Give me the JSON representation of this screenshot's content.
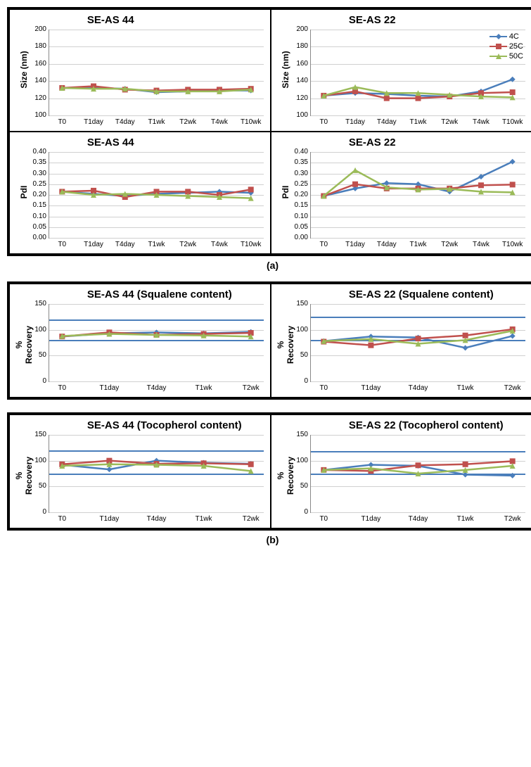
{
  "captions": {
    "a": "(a)",
    "b": "(b)"
  },
  "colors": {
    "s4": "#4a7ebb",
    "s25": "#c0504d",
    "s50": "#9bbb59",
    "grid": "#d0d0d0",
    "axis": "#888888",
    "refline": "#4a7ebb"
  },
  "markers": {
    "s4": "diamond",
    "s25": "square",
    "s50": "triangle"
  },
  "legend": {
    "items": [
      {
        "label": "4C",
        "key": "s4"
      },
      {
        "label": "25C",
        "key": "s25"
      },
      {
        "label": "50C",
        "key": "s50"
      }
    ]
  },
  "line_width": 2.5,
  "marker_size": 8,
  "title_fontsize": 15,
  "label_fontsize": 12,
  "tick_fontsize": 10,
  "groupA": {
    "xlabels": [
      "T0",
      "T1day",
      "T4day",
      "T1wk",
      "T2wk",
      "T4wk",
      "T10wk"
    ],
    "charts": [
      {
        "title": "SE-AS 44",
        "ylabel": "Size (nm)",
        "ylim": [
          100,
          200
        ],
        "ystep": 20,
        "series": {
          "s4": [
            132,
            132,
            131,
            127,
            128,
            129,
            129
          ],
          "s25": [
            132,
            134,
            130,
            129,
            130,
            130,
            131
          ],
          "s50": [
            132,
            131,
            131,
            128,
            128,
            128,
            130
          ]
        }
      },
      {
        "title": "SE-AS 22",
        "ylabel": "Size (nm)",
        "ylim": [
          100,
          200
        ],
        "ystep": 20,
        "show_legend": true,
        "series": {
          "s4": [
            123,
            126,
            125,
            123,
            122,
            128,
            142
          ],
          "s25": [
            123,
            128,
            120,
            120,
            122,
            126,
            127
          ],
          "s50": [
            123,
            133,
            126,
            126,
            124,
            122,
            121
          ]
        }
      },
      {
        "title": "SE-AS 44",
        "ylabel": "PdI",
        "ylim": [
          0.0,
          0.4
        ],
        "ystep": 0.05,
        "decimals": 2,
        "series": {
          "s4": [
            0.215,
            0.205,
            0.195,
            0.205,
            0.21,
            0.215,
            0.21
          ],
          "s25": [
            0.215,
            0.22,
            0.19,
            0.215,
            0.215,
            0.2,
            0.225
          ],
          "s50": [
            0.215,
            0.2,
            0.205,
            0.2,
            0.195,
            0.19,
            0.185
          ]
        }
      },
      {
        "title": "SE-AS 22",
        "ylabel": "PdI",
        "ylim": [
          0.0,
          0.4
        ],
        "ystep": 0.05,
        "decimals": 2,
        "series": {
          "s4": [
            0.195,
            0.23,
            0.255,
            0.25,
            0.215,
            0.285,
            0.355
          ],
          "s25": [
            0.195,
            0.25,
            0.23,
            0.23,
            0.23,
            0.245,
            0.248
          ],
          "s50": [
            0.195,
            0.315,
            0.235,
            0.225,
            0.228,
            0.215,
            0.212
          ]
        }
      }
    ]
  },
  "groupB": {
    "xlabels": [
      "T0",
      "T1day",
      "T4day",
      "T1wk",
      "T2wk"
    ],
    "charts": [
      {
        "title": "SE-AS 44 (Squalene content)",
        "ylabel": "% Recovery",
        "ylim": [
          0,
          150
        ],
        "ystep": 50,
        "reflines": [
          80,
          120
        ],
        "series": {
          "s4": [
            87,
            93,
            95,
            93,
            96
          ],
          "s25": [
            87,
            95,
            90,
            92,
            94
          ],
          "s50": [
            88,
            92,
            90,
            89,
            87
          ]
        }
      },
      {
        "title": "SE-AS 22 (Squalene content)",
        "ylabel": "% Recovery",
        "ylim": [
          0,
          150
        ],
        "ystep": 50,
        "reflines": [
          80,
          125
        ],
        "series": {
          "s4": [
            78,
            87,
            85,
            65,
            88
          ],
          "s25": [
            77,
            70,
            83,
            89,
            101
          ],
          "s50": [
            78,
            82,
            73,
            80,
            98
          ]
        }
      },
      {
        "title": "SE-AS 44 (Tocopherol content)",
        "ylabel": "% Recovery",
        "ylim": [
          0,
          150
        ],
        "ystep": 50,
        "reflines": [
          75,
          120
        ],
        "series": {
          "s4": [
            92,
            83,
            100,
            96,
            94
          ],
          "s25": [
            93,
            100,
            94,
            95,
            93
          ],
          "s50": [
            90,
            93,
            92,
            90,
            80
          ]
        }
      },
      {
        "title": "SE-AS 22 (Tocopherol content)",
        "ylabel": "% Recovery",
        "ylim": [
          0,
          150
        ],
        "ystep": 50,
        "reflines": [
          75,
          118
        ],
        "series": {
          "s4": [
            82,
            92,
            90,
            73,
            71
          ],
          "s25": [
            82,
            80,
            91,
            93,
            99
          ],
          "s50": [
            82,
            85,
            75,
            82,
            90
          ]
        }
      }
    ]
  }
}
